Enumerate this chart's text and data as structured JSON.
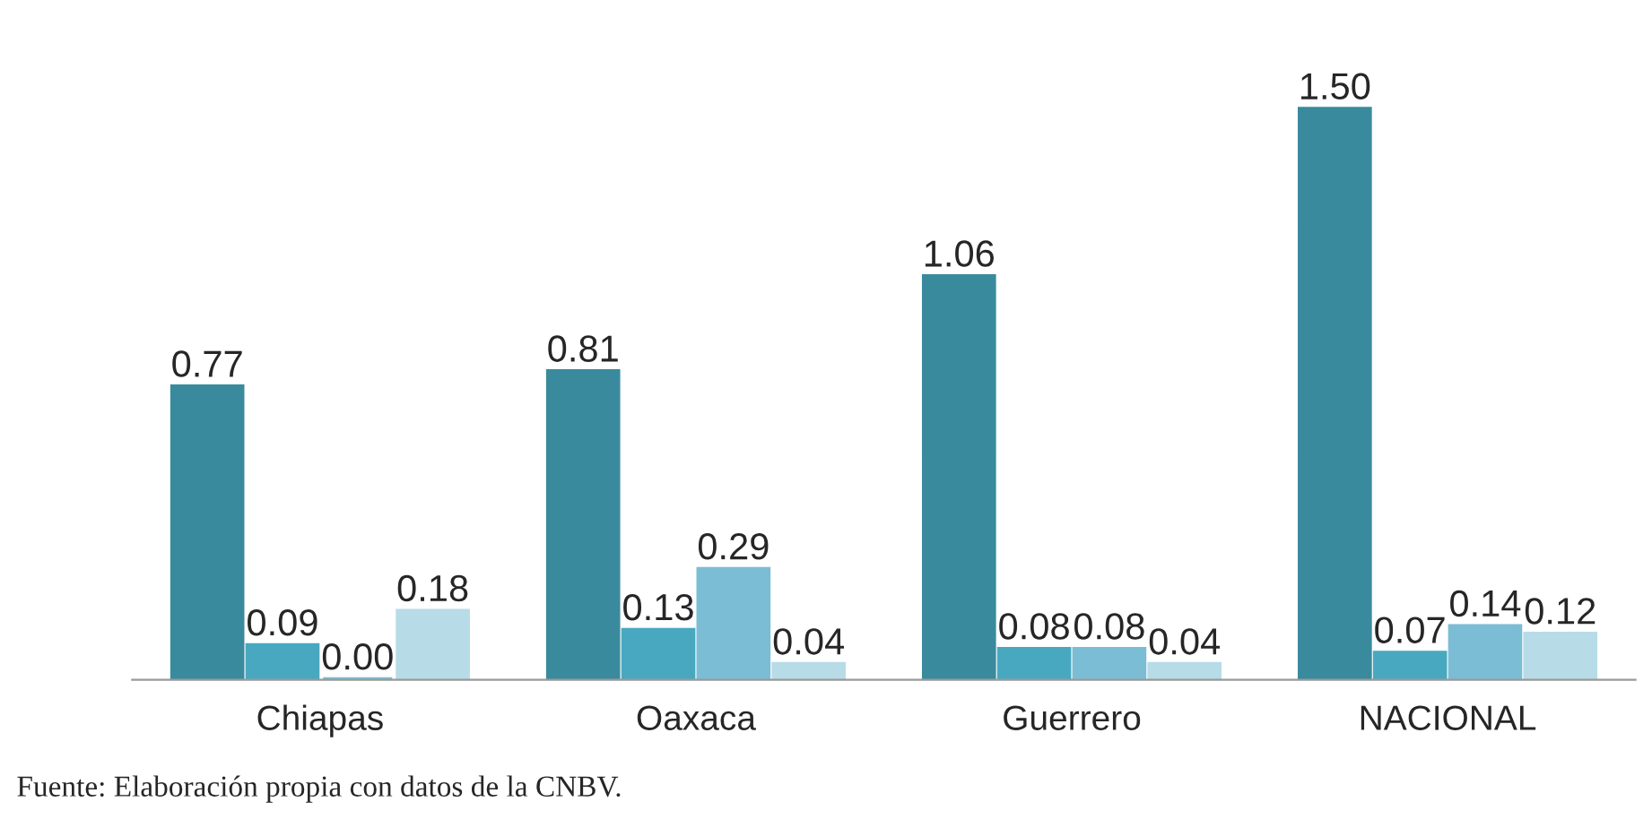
{
  "chart_data": {
    "type": "bar",
    "categories": [
      "Chiapas",
      "Oaxaca",
      "Guerrero",
      "NACIONAL"
    ],
    "series": [
      {
        "color": "#3a8a9e",
        "values": [
          0.77,
          0.81,
          1.06,
          1.5
        ],
        "value_labels": [
          "0.77",
          "0.81",
          "1.06",
          "1.50"
        ]
      },
      {
        "color": "#48a8c0",
        "values": [
          0.09,
          0.13,
          0.08,
          0.07
        ],
        "value_labels": [
          "0.09",
          "0.13",
          "0.08",
          "0.07"
        ]
      },
      {
        "color": "#7bbdd4",
        "values": [
          0.0,
          0.29,
          0.08,
          0.14
        ],
        "value_labels": [
          "0.00",
          "0.29",
          "0.08",
          "0.14"
        ]
      },
      {
        "color": "#b7dce8",
        "values": [
          0.18,
          0.04,
          0.04,
          0.12
        ],
        "value_labels": [
          "0.18",
          "0.04",
          "0.04",
          "0.12"
        ]
      }
    ],
    "grid": false,
    "annotations": [
      "Fuente: Elaboración propia con datos de la CNBV."
    ]
  }
}
